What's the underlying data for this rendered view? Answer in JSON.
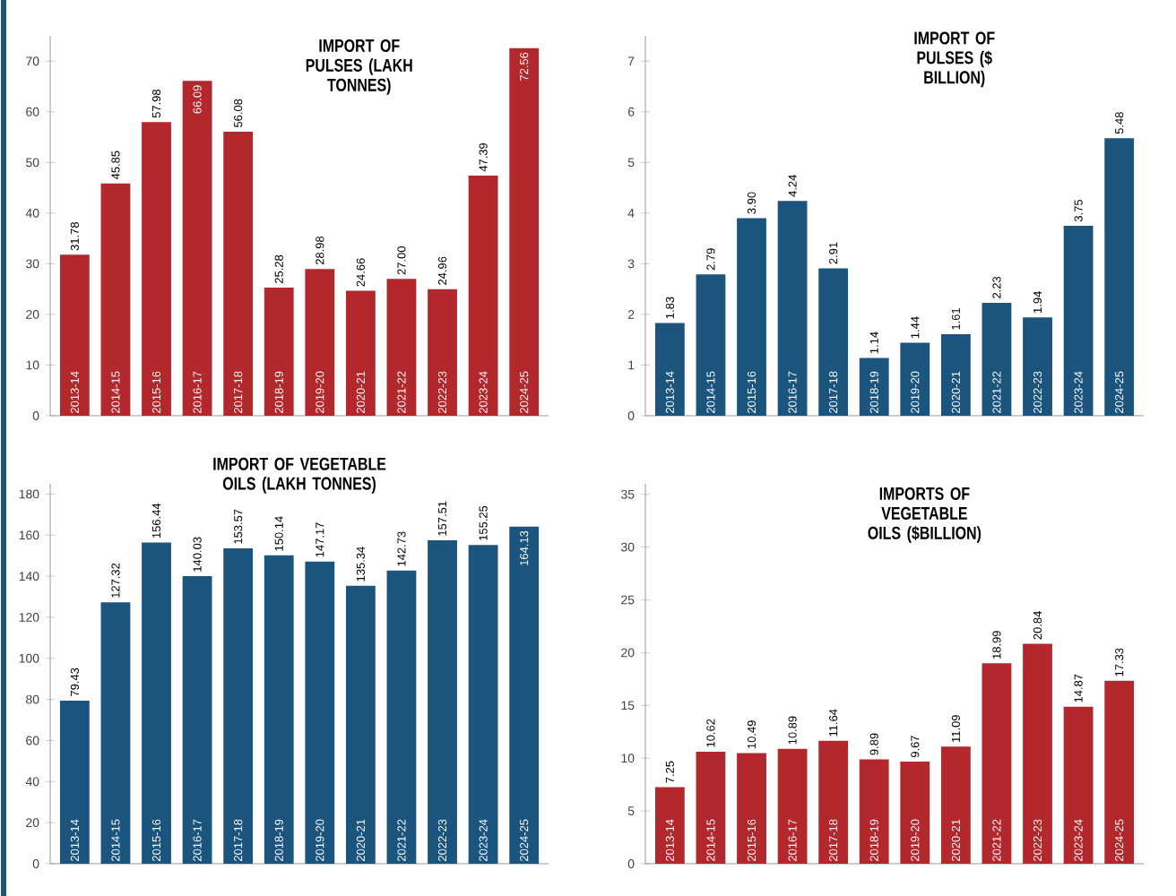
{
  "chart_data": [
    {
      "type": "bar",
      "title": "IMPORT OF PULSES (LAKH TONNES)",
      "categories": [
        "2013-14",
        "2014-15",
        "2015-16",
        "2016-17",
        "2017-18",
        "2018-19",
        "2019-20",
        "2020-21",
        "2021-22",
        "2022-23",
        "2023-24",
        "2024-25"
      ],
      "values": [
        31.78,
        45.85,
        57.98,
        66.09,
        56.08,
        25.28,
        28.98,
        24.66,
        27.0,
        24.96,
        47.39,
        72.56
      ],
      "value_labels": [
        "31.78",
        "45.85",
        "57.98",
        "66.09",
        "56.08",
        "25.28",
        "28.98",
        "24.66",
        "27.00",
        "24.96",
        "47.39",
        "72.56"
      ],
      "color": "#b3282d",
      "ylim": [
        0,
        75
      ],
      "yticks": [
        0,
        10,
        20,
        30,
        40,
        50,
        60,
        70
      ]
    },
    {
      "type": "bar",
      "title": "IMPORT OF PULSES ($ BILLION)",
      "categories": [
        "2013-14",
        "2014-15",
        "2015-16",
        "2016-17",
        "2017-18",
        "2018-19",
        "2019-20",
        "2020-21",
        "2021-22",
        "2022-23",
        "2023-24",
        "2024-25"
      ],
      "values": [
        1.83,
        2.79,
        3.9,
        4.24,
        2.91,
        1.14,
        1.44,
        1.61,
        2.23,
        1.94,
        3.75,
        5.48
      ],
      "value_labels": [
        "1.83",
        "2.79",
        "3.90",
        "4.24",
        "2.91",
        "1.14",
        "1.44",
        "1.61",
        "2.23",
        "1.94",
        "3.75",
        "5.48"
      ],
      "color": "#1b557e",
      "ylim": [
        0,
        7.5
      ],
      "yticks": [
        0,
        1,
        2,
        3,
        4,
        5,
        6,
        7
      ]
    },
    {
      "type": "bar",
      "title": "IMPORT OF VEGETABLE OILS (LAKH TONNES)",
      "categories": [
        "2013-14",
        "2014-15",
        "2015-16",
        "2016-17",
        "2017-18",
        "2018-19",
        "2019-20",
        "2020-21",
        "2021-22",
        "2022-23",
        "2023-24",
        "2024-25"
      ],
      "values": [
        79.43,
        127.32,
        156.44,
        140.03,
        153.57,
        150.14,
        147.17,
        135.34,
        142.73,
        157.51,
        155.25,
        164.13
      ],
      "value_labels": [
        "79.43",
        "127.32",
        "156.44",
        "140.03",
        "153.57",
        "150.14",
        "147.17",
        "135.34",
        "142.73",
        "157.51",
        "155.25",
        "164.13"
      ],
      "color": "#1b557e",
      "ylim": [
        0,
        185
      ],
      "yticks": [
        0,
        20,
        40,
        60,
        80,
        100,
        120,
        140,
        160,
        180
      ]
    },
    {
      "type": "bar",
      "title": "IMPORTS OF VEGETABLE OILS ($BILLION)",
      "categories": [
        "2013-14",
        "2014-15",
        "2015-16",
        "2016-17",
        "2017-18",
        "2018-19",
        "2019-20",
        "2020-21",
        "2021-22",
        "2022-23",
        "2023-24",
        "2024-25"
      ],
      "values": [
        7.25,
        10.62,
        10.49,
        10.89,
        11.64,
        9.89,
        9.67,
        11.09,
        18.99,
        20.84,
        14.87,
        17.33
      ],
      "value_labels": [
        "7.25",
        "10.62",
        "10.49",
        "10.89",
        "11.64",
        "9.89",
        "9.67",
        "11.09",
        "18.99",
        "20.84",
        "14.87",
        "17.33"
      ],
      "color": "#b3282d",
      "ylim": [
        0,
        36
      ],
      "yticks": [
        0,
        5,
        10,
        15,
        20,
        25,
        30,
        35
      ]
    }
  ]
}
